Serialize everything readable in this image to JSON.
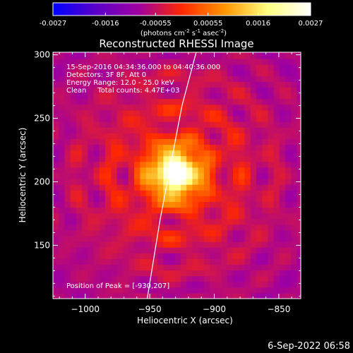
{
  "colorbar": {
    "ticks": [
      "-0.0027",
      "-0.0016",
      "-0.00055",
      "0.00055",
      "0.0016",
      "0.0027"
    ],
    "tick_values": [
      -0.0027,
      -0.0016,
      -0.00055,
      0.00055,
      0.0016,
      0.0027
    ],
    "range": [
      -0.0027,
      0.0027
    ],
    "unit": {
      "open": "(photons cm",
      "sup1": "-2",
      "mid1": " s",
      "sup2": "-1",
      "mid2": " asec",
      "sup3": "-2",
      "close": ")"
    },
    "colormap": [
      "#0000ff",
      "#5a00c8",
      "#a000a0",
      "#ff2800",
      "#ff9600",
      "#ffff80",
      "#ffffff"
    ]
  },
  "chart_data": {
    "type": "heatmap",
    "title": "Reconstructed RHESSI Image",
    "xlabel": "Heliocentric X (arcsec)",
    "ylabel": "Heliocentric Y (arcsec)",
    "xlim": [
      -1025,
      -833
    ],
    "ylim": [
      108,
      302
    ],
    "xticks": [
      -1000,
      -950,
      -900,
      -850
    ],
    "yticks": [
      150,
      200,
      250,
      300
    ],
    "xticklabels": [
      "−1000",
      "−950",
      "−900",
      "−850"
    ],
    "yticklabels": [
      "150",
      "200",
      "250",
      "300"
    ],
    "peak": {
      "x": -930,
      "y": 207
    },
    "limb": [
      [
        -952,
        108
      ],
      [
        -942,
        170
      ],
      [
        -935,
        207
      ],
      [
        -925,
        260
      ],
      [
        -914,
        302
      ]
    ],
    "annotations": [
      "15-Sep-2016 04:34:36.000 to 04:40:36.000",
      "Detectors: 3F 8F, Att 0",
      "Energy Range: 12.0 - 25.0 keV",
      "Clean     Total counts: 4.47E+03",
      "Position of Peak = [-930,207]"
    ]
  },
  "footer": {
    "timestamp": "6-Sep-2022 06:58"
  }
}
